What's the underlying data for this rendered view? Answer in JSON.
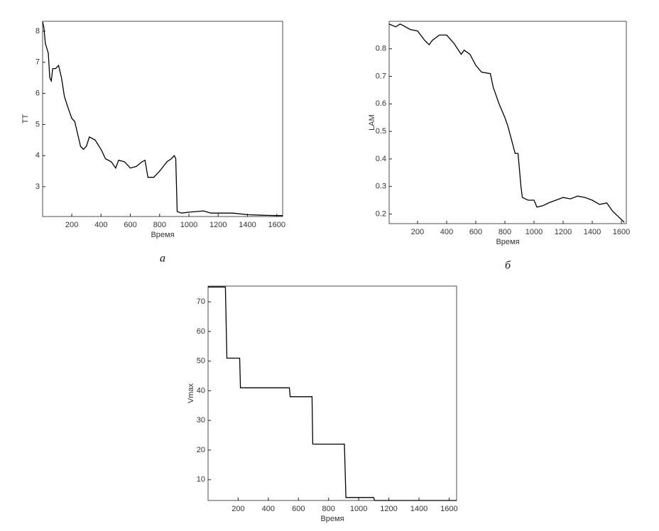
{
  "chart_data": [
    {
      "type": "line",
      "caption": "а",
      "xlabel": "Время",
      "ylabel": "TT",
      "xlim": [
        1,
        1640
      ],
      "ylim": [
        2.04,
        8.32
      ],
      "xticks": [
        200,
        400,
        600,
        800,
        1000,
        1200,
        1400,
        1600
      ],
      "yticks": [
        3,
        4,
        5,
        6,
        7,
        8
      ],
      "series": [
        {
          "color": "#000000",
          "x": [
            1,
            10,
            20,
            40,
            50,
            60,
            70,
            90,
            110,
            130,
            150,
            170,
            200,
            220,
            240,
            260,
            280,
            300,
            320,
            360,
            400,
            430,
            470,
            500,
            520,
            560,
            600,
            640,
            680,
            700,
            720,
            760,
            800,
            850,
            880,
            900,
            910,
            920,
            950,
            1000,
            1050,
            1100,
            1150,
            1200,
            1300,
            1400,
            1500,
            1600,
            1640
          ],
          "values": [
            8.3,
            8.1,
            7.6,
            7.3,
            6.5,
            6.4,
            6.8,
            6.8,
            6.9,
            6.5,
            5.9,
            5.6,
            5.2,
            5.1,
            4.7,
            4.3,
            4.2,
            4.3,
            4.6,
            4.5,
            4.2,
            3.9,
            3.8,
            3.6,
            3.85,
            3.8,
            3.6,
            3.65,
            3.8,
            3.85,
            3.3,
            3.3,
            3.5,
            3.8,
            3.9,
            4.0,
            3.9,
            2.2,
            2.15,
            2.18,
            2.2,
            2.22,
            2.15,
            2.15,
            2.15,
            2.1,
            2.08,
            2.07,
            2.07
          ]
        }
      ]
    },
    {
      "type": "line",
      "caption": "б",
      "xlabel": "Время",
      "ylabel": "LAM",
      "xlim": [
        5,
        1634
      ],
      "ylim": [
        0.165,
        0.9
      ],
      "xticks": [
        200,
        400,
        600,
        800,
        1000,
        1200,
        1400,
        1600
      ],
      "yticks": [
        0.2,
        0.3,
        0.4,
        0.5,
        0.6,
        0.7,
        0.8
      ],
      "series": [
        {
          "color": "#000000",
          "x": [
            5,
            50,
            80,
            100,
            150,
            200,
            250,
            280,
            300,
            350,
            400,
            450,
            500,
            520,
            560,
            600,
            640,
            700,
            720,
            760,
            800,
            820,
            850,
            870,
            890,
            910,
            920,
            960,
            1000,
            1020,
            1060,
            1100,
            1150,
            1200,
            1250,
            1300,
            1350,
            1400,
            1450,
            1500,
            1540,
            1580,
            1620
          ],
          "values": [
            0.89,
            0.88,
            0.89,
            0.885,
            0.87,
            0.865,
            0.83,
            0.815,
            0.83,
            0.85,
            0.85,
            0.82,
            0.78,
            0.795,
            0.78,
            0.74,
            0.715,
            0.71,
            0.66,
            0.6,
            0.55,
            0.52,
            0.46,
            0.42,
            0.42,
            0.3,
            0.26,
            0.25,
            0.25,
            0.225,
            0.23,
            0.24,
            0.25,
            0.26,
            0.255,
            0.265,
            0.26,
            0.25,
            0.235,
            0.24,
            0.21,
            0.19,
            0.17
          ]
        }
      ]
    },
    {
      "type": "line",
      "xlabel": "Время",
      "ylabel": "Vmax",
      "xlim": [
        0,
        1650
      ],
      "ylim": [
        3,
        75.3
      ],
      "xticks": [
        200,
        400,
        600,
        800,
        1000,
        1200,
        1400,
        1600
      ],
      "yticks": [
        10,
        20,
        30,
        40,
        50,
        60,
        70
      ],
      "series": [
        {
          "color": "#000000",
          "x": [
            0,
            115,
            125,
            210,
            215,
            540,
            545,
            690,
            695,
            905,
            915,
            1100,
            1105,
            1650
          ],
          "values": [
            75,
            75,
            51,
            51,
            41,
            41,
            38,
            38,
            22,
            22,
            4,
            4,
            3,
            3
          ]
        }
      ]
    }
  ]
}
